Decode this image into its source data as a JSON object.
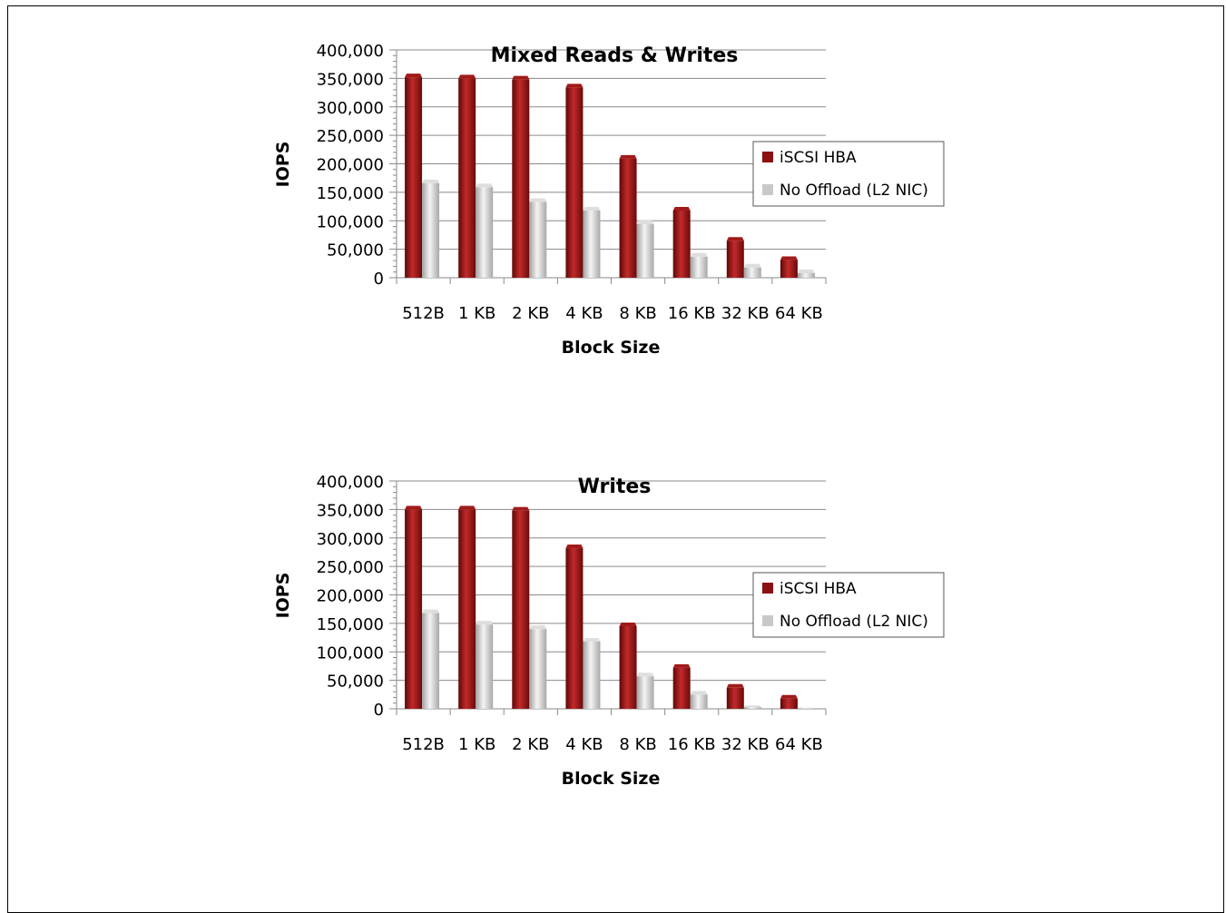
{
  "chart_data": [
    {
      "type": "bar",
      "title": "Mixed Reads & Writes",
      "xlabel": "Block Size",
      "ylabel": "IOPS",
      "categories": [
        "512B",
        "1 KB",
        "2 KB",
        "4 KB",
        "8 KB",
        "16 KB",
        "32 KB",
        "64 KB"
      ],
      "series": [
        {
          "name": "iSCSI HBA",
          "color": "#8b1010",
          "values": [
            352000,
            350000,
            348000,
            334000,
            209000,
            118000,
            65000,
            31000
          ]
        },
        {
          "name": "No Offload (L2 NIC)",
          "color": "#c8c8c8",
          "values": [
            166000,
            159000,
            133000,
            118000,
            94000,
            37000,
            18000,
            8000
          ]
        }
      ],
      "ylim": [
        0,
        400000
      ],
      "yticks": [
        "0",
        "50,000",
        "100,000",
        "150,000",
        "200,000",
        "250,000",
        "300,000",
        "350,000",
        "400,000"
      ],
      "grid": true,
      "legend_position": "right"
    },
    {
      "type": "bar",
      "title": "Writes",
      "xlabel": "Block Size",
      "ylabel": "IOPS",
      "categories": [
        "512B",
        "1 KB",
        "2 KB",
        "4 KB",
        "8 KB",
        "16 KB",
        "32 KB",
        "64 KB"
      ],
      "series": [
        {
          "name": "iSCSI HBA",
          "color": "#8b1010",
          "values": [
            350000,
            350000,
            348000,
            282000,
            145000,
            72000,
            37000,
            18000
          ]
        },
        {
          "name": "No Offload (L2 NIC)",
          "color": "#c8c8c8",
          "values": [
            168000,
            148000,
            140000,
            118000,
            57000,
            25000,
            3000,
            1000
          ]
        }
      ],
      "ylim": [
        0,
        400000
      ],
      "yticks": [
        "0",
        "50,000",
        "100,000",
        "150,000",
        "200,000",
        "250,000",
        "300,000",
        "350,000",
        "400,000"
      ],
      "grid": true,
      "legend_position": "right"
    }
  ]
}
